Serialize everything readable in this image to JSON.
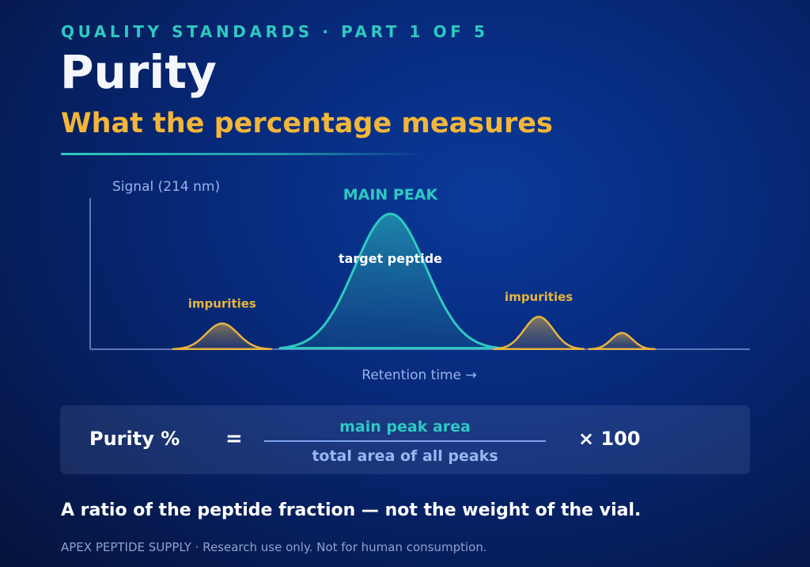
{
  "header": {
    "eyebrow": "QUALITY STANDARDS · PART 1 OF 5",
    "title": "Purity",
    "subtitle": "What the percentage measures"
  },
  "chart_data": {
    "type": "area",
    "ylabel": "Signal (214 nm)",
    "xlabel": "Retention time →",
    "peaks": [
      {
        "label": "impurities",
        "kind": "impurity",
        "center": 0.2,
        "height": 0.19,
        "width": 0.024
      },
      {
        "label": "MAIN PEAK",
        "sublabel": "target peptide",
        "kind": "main",
        "center": 0.455,
        "height": 1.0,
        "width": 0.054
      },
      {
        "label": "impurities",
        "kind": "impurity",
        "center": 0.68,
        "height": 0.24,
        "width": 0.022
      },
      {
        "label": "",
        "kind": "impurity",
        "center": 0.806,
        "height": 0.12,
        "width": 0.016
      }
    ],
    "colors": {
      "main": "#2ec9c0",
      "impurity": "#e9b440",
      "axis": "#5d78b8",
      "axis_label": "#9ab3ec"
    }
  },
  "formula": {
    "label": "Purity %",
    "equals": "=",
    "numerator": "main peak area",
    "denominator": "total area of all peaks",
    "multiplier": "× 100"
  },
  "tagline": "A ratio of the peptide fraction — not the weight of the vial.",
  "footer": "APEX PEPTIDE SUPPLY · Research use only. Not for human consumption."
}
